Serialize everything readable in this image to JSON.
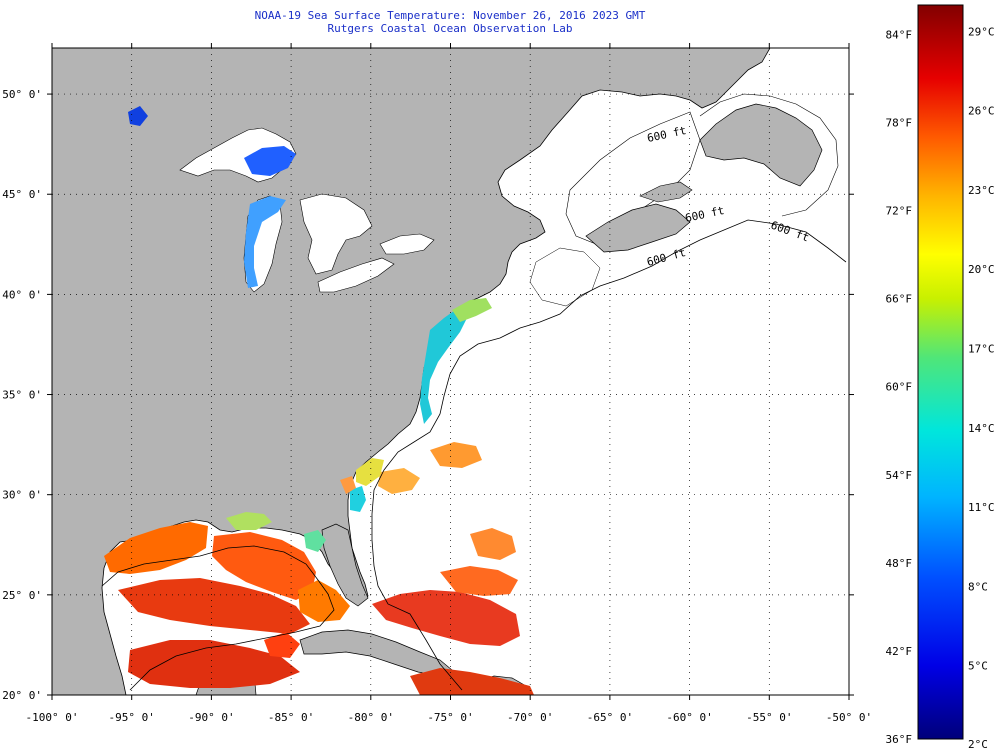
{
  "title": {
    "line1": "NOAA-19 Sea Surface Temperature:  November 26, 2016 2023 GMT",
    "line2": "Rutgers Coastal Ocean Observation Lab"
  },
  "map": {
    "lon_range": [
      -100,
      -50
    ],
    "lat_range": [
      20,
      52.3
    ],
    "land_color": "#b4b4b4",
    "cloud_color": "#ffffff",
    "lon_ticks": [
      {
        "value": -100,
        "label": "-100° 0'"
      },
      {
        "value": -95,
        "label": "-95° 0'"
      },
      {
        "value": -90,
        "label": "-90° 0'"
      },
      {
        "value": -85,
        "label": "-85° 0'"
      },
      {
        "value": -80,
        "label": "-80° 0'"
      },
      {
        "value": -75,
        "label": "-75° 0'"
      },
      {
        "value": -70,
        "label": "-70° 0'"
      },
      {
        "value": -65,
        "label": "-65° 0'"
      },
      {
        "value": -60,
        "label": "-60° 0'"
      },
      {
        "value": -55,
        "label": "-55° 0'"
      },
      {
        "value": -50,
        "label": "-50° 0'"
      }
    ],
    "lat_ticks": [
      {
        "value": 20,
        "label": "20° 0'"
      },
      {
        "value": 25,
        "label": "25° 0'"
      },
      {
        "value": 30,
        "label": "30° 0'"
      },
      {
        "value": 35,
        "label": "35° 0'"
      },
      {
        "value": 40,
        "label": "40° 0'"
      },
      {
        "value": 45,
        "label": "45° 0'"
      },
      {
        "value": 50,
        "label": "50° 0'"
      }
    ],
    "contour_labels": [
      "600 ft",
      "600 ft",
      "600 ft",
      "600 ft"
    ]
  },
  "colorbar": {
    "range_f": [
      36,
      86
    ],
    "fahrenheit_labels": [
      "84°F",
      "78°F",
      "72°F",
      "66°F",
      "60°F",
      "54°F",
      "48°F",
      "42°F",
      "36°F"
    ],
    "fahrenheit_values": [
      84,
      78,
      72,
      66,
      60,
      54,
      48,
      42,
      36
    ],
    "celsius_labels": [
      "29°C",
      "26°C",
      "23°C",
      "20°C",
      "17°C",
      "14°C",
      "11°C",
      "8°C",
      "5°C",
      "2°C"
    ],
    "celsius_values": [
      29,
      26,
      23,
      20,
      17,
      14,
      11,
      8,
      5,
      2
    ]
  }
}
